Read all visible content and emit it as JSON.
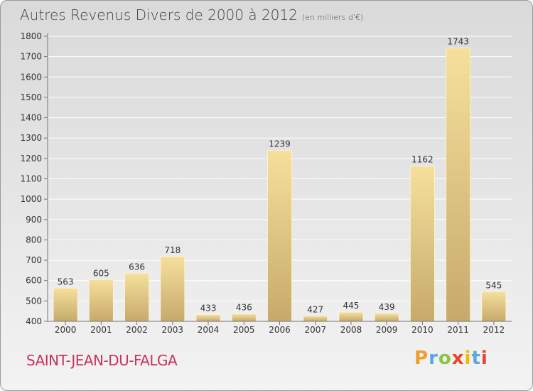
{
  "header": {
    "title": "Autres Revenus Divers de 2000 à 2012",
    "unit": "(en milliers d'€)"
  },
  "footer": {
    "city": "SAINT-JEAN-DU-FALGA",
    "logo": "Proxiti"
  },
  "colors": {
    "bar_light": "#f5dc98",
    "bar_dark": "#c8ad6e",
    "city_text": "#c8325a",
    "logo_letters": [
      "#f39c2a",
      "#5aa9d8",
      "#8cc63f",
      "#e8442c",
      "#f5b800",
      "#5aa9d8",
      "#e8442c"
    ]
  },
  "chart_data": {
    "type": "bar",
    "title": "Autres Revenus Divers de 2000 à 2012",
    "subtitle": "(en milliers d'€)",
    "categories": [
      "2000",
      "2001",
      "2002",
      "2003",
      "2004",
      "2005",
      "2006",
      "2007",
      "2008",
      "2009",
      "2010",
      "2011",
      "2012"
    ],
    "values": [
      563,
      605,
      636,
      718,
      433,
      436,
      1239,
      427,
      445,
      439,
      1162,
      1743,
      545
    ],
    "ylim": [
      400,
      1800
    ],
    "yticks": [
      400,
      500,
      600,
      700,
      800,
      900,
      1000,
      1100,
      1200,
      1300,
      1400,
      1500,
      1600,
      1700,
      1800
    ],
    "grid": true,
    "legend": "none"
  }
}
